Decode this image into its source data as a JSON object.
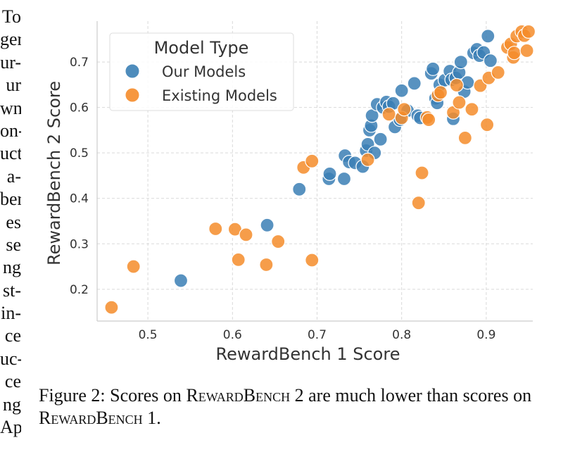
{
  "margin_text": [
    "To",
    "ger",
    "ur-",
    "ur",
    "wn",
    "on-",
    "uct",
    "a-",
    "ber",
    "es",
    "se",
    "ng",
    "st-",
    "in-",
    "ce",
    "uc-",
    "ce",
    "ng",
    "Ap-"
  ],
  "caption": {
    "label": "Figure 2:",
    "part1": "Scores on",
    "benchmark": "RewardBench",
    "part2": "2 are much lower than scores on",
    "part3": "1."
  },
  "colors": {
    "our": "#3b7fb5",
    "existing": "#f58c2a",
    "grid": "#d9d9d9",
    "axis": "#cccccc",
    "text": "#333333"
  },
  "chart_data": {
    "type": "scatter",
    "xlabel": "RewardBench 1 Score",
    "ylabel": "RewardBench 2 Score",
    "xlim": [
      0.44,
      0.955
    ],
    "ylim": [
      0.13,
      0.79
    ],
    "xticks": [
      0.5,
      0.6,
      0.7,
      0.8,
      0.9
    ],
    "yticks": [
      0.2,
      0.3,
      0.4,
      0.5,
      0.6,
      0.7
    ],
    "grid": true,
    "legend": {
      "title": "Model Type",
      "placement": "top-left"
    },
    "series": [
      {
        "name": "Our Models",
        "points": [
          [
            0.539,
            0.219
          ],
          [
            0.641,
            0.341
          ],
          [
            0.679,
            0.42
          ],
          [
            0.714,
            0.443
          ],
          [
            0.715,
            0.454
          ],
          [
            0.732,
            0.443
          ],
          [
            0.733,
            0.494
          ],
          [
            0.738,
            0.48
          ],
          [
            0.745,
            0.478
          ],
          [
            0.754,
            0.47
          ],
          [
            0.758,
            0.505
          ],
          [
            0.76,
            0.519
          ],
          [
            0.762,
            0.55
          ],
          [
            0.764,
            0.56
          ],
          [
            0.765,
            0.582
          ],
          [
            0.768,
            0.5
          ],
          [
            0.771,
            0.607
          ],
          [
            0.775,
            0.53
          ],
          [
            0.778,
            0.6
          ],
          [
            0.782,
            0.612
          ],
          [
            0.785,
            0.602
          ],
          [
            0.79,
            0.609
          ],
          [
            0.792,
            0.557
          ],
          [
            0.798,
            0.573
          ],
          [
            0.8,
            0.637
          ],
          [
            0.807,
            0.593
          ],
          [
            0.815,
            0.653
          ],
          [
            0.819,
            0.582
          ],
          [
            0.822,
            0.577
          ],
          [
            0.835,
            0.675
          ],
          [
            0.837,
            0.685
          ],
          [
            0.84,
            0.62
          ],
          [
            0.842,
            0.61
          ],
          [
            0.845,
            0.65
          ],
          [
            0.851,
            0.66
          ],
          [
            0.857,
            0.68
          ],
          [
            0.859,
            0.661
          ],
          [
            0.861,
            0.575
          ],
          [
            0.864,
            0.665
          ],
          [
            0.868,
            0.677
          ],
          [
            0.87,
            0.7
          ],
          [
            0.874,
            0.635
          ],
          [
            0.878,
            0.655
          ],
          [
            0.885,
            0.72
          ],
          [
            0.889,
            0.728
          ],
          [
            0.892,
            0.714
          ],
          [
            0.897,
            0.721
          ],
          [
            0.902,
            0.757
          ],
          [
            0.905,
            0.703
          ]
        ]
      },
      {
        "name": "Existing Models",
        "points": [
          [
            0.457,
            0.16
          ],
          [
            0.483,
            0.25
          ],
          [
            0.58,
            0.333
          ],
          [
            0.603,
            0.332
          ],
          [
            0.607,
            0.265
          ],
          [
            0.616,
            0.32
          ],
          [
            0.64,
            0.254
          ],
          [
            0.654,
            0.305
          ],
          [
            0.684,
            0.468
          ],
          [
            0.694,
            0.482
          ],
          [
            0.694,
            0.264
          ],
          [
            0.76,
            0.485
          ],
          [
            0.785,
            0.585
          ],
          [
            0.8,
            0.577
          ],
          [
            0.803,
            0.596
          ],
          [
            0.82,
            0.39
          ],
          [
            0.824,
            0.456
          ],
          [
            0.83,
            0.578
          ],
          [
            0.832,
            0.573
          ],
          [
            0.843,
            0.627
          ],
          [
            0.846,
            0.633
          ],
          [
            0.861,
            0.589
          ],
          [
            0.865,
            0.649
          ],
          [
            0.868,
            0.611
          ],
          [
            0.875,
            0.533
          ],
          [
            0.883,
            0.596
          ],
          [
            0.893,
            0.648
          ],
          [
            0.901,
            0.562
          ],
          [
            0.903,
            0.665
          ],
          [
            0.914,
            0.677
          ],
          [
            0.925,
            0.732
          ],
          [
            0.929,
            0.74
          ],
          [
            0.932,
            0.71
          ],
          [
            0.933,
            0.72
          ],
          [
            0.936,
            0.757
          ],
          [
            0.942,
            0.767
          ],
          [
            0.945,
            0.758
          ],
          [
            0.948,
            0.725
          ],
          [
            0.95,
            0.767
          ]
        ]
      }
    ]
  }
}
